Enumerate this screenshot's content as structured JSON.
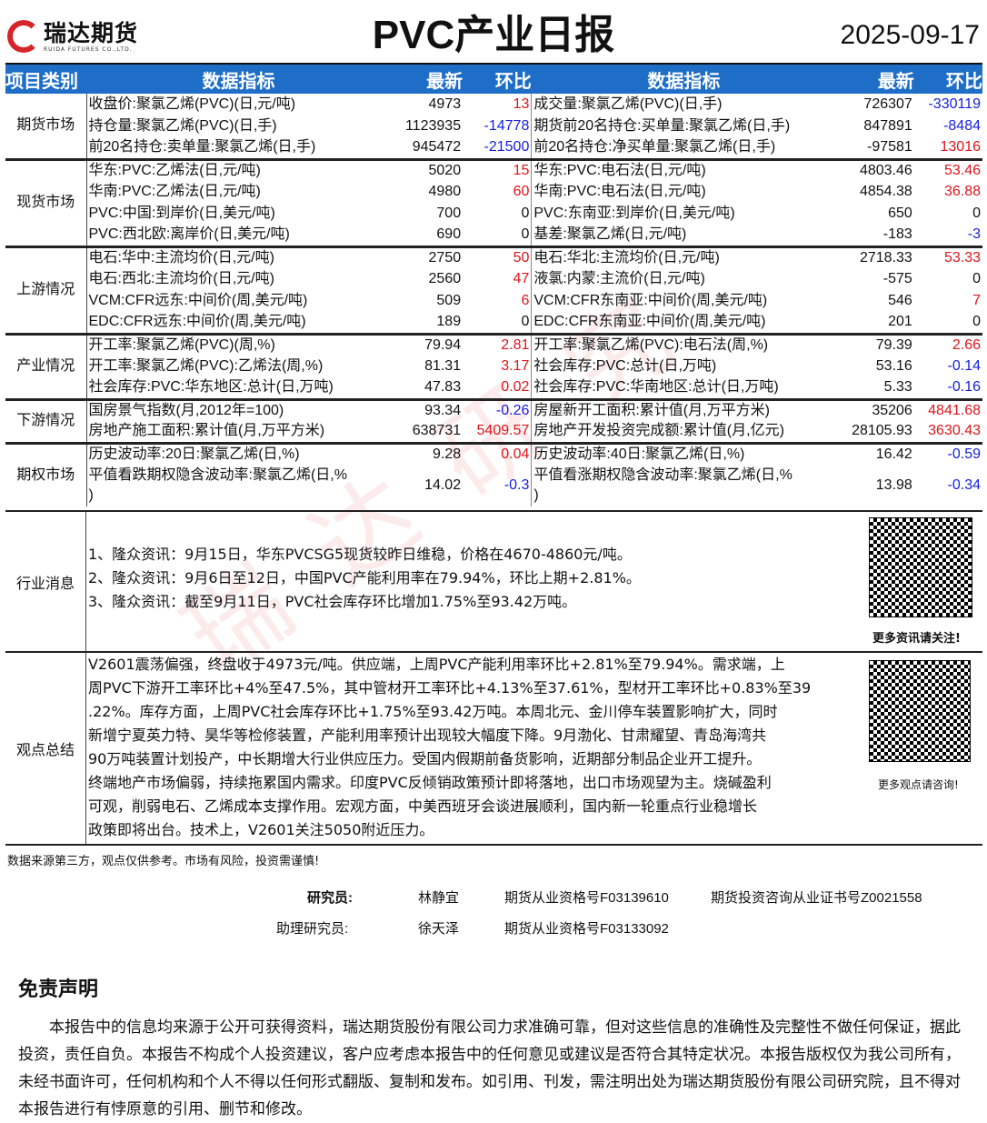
{
  "header": {
    "logo_cn": "瑞达期货",
    "logo_en": "RUIDA FUTURES CO.,LTD.",
    "title": "PVC产业日报",
    "date": "2025-09-17"
  },
  "columns": {
    "category": "项目类别",
    "indicator": "数据指标",
    "latest": "最新",
    "change": "环比"
  },
  "sections": [
    {
      "category": "期货市场",
      "rows": [
        [
          "收盘价:聚氯乙烯(PVC)(日,元/吨)",
          "4973",
          "13",
          "成交量:聚氯乙烯(PVC)(日,手)",
          "726307",
          "-330119"
        ],
        [
          "持仓量:聚氯乙烯(PVC)(日,手)",
          "1123935",
          "-14778",
          "期货前20名持仓:买单量:聚氯乙烯(日,手)",
          "847891",
          "-8484"
        ],
        [
          "前20名持仓:卖单量:聚氯乙烯(日,手)",
          "945472",
          "-21500",
          "前20名持仓:净买单量:聚氯乙烯(日,手)",
          "-97581",
          "13016"
        ]
      ]
    },
    {
      "category": "现货市场",
      "rows": [
        [
          "华东:PVC:乙烯法(日,元/吨)",
          "5020",
          "15",
          "华东:PVC:电石法(日,元/吨)",
          "4803.46",
          "53.46"
        ],
        [
          "华南:PVC:乙烯法(日,元/吨)",
          "4980",
          "60",
          "华南:PVC:电石法(日,元/吨)",
          "4854.38",
          "36.88"
        ],
        [
          "PVC:中国:到岸价(日,美元/吨)",
          "700",
          "0",
          "PVC:东南亚:到岸价(日,美元/吨)",
          "650",
          "0"
        ],
        [
          "PVC:西北欧:离岸价(日,美元/吨)",
          "690",
          "0",
          "基差:聚氯乙烯(日,元/吨)",
          "-183",
          "-3"
        ]
      ]
    },
    {
      "category": "上游情况",
      "rows": [
        [
          "电石:华中:主流均价(日,元/吨)",
          "2750",
          "50",
          "电石:华北:主流均价(日,元/吨)",
          "2718.33",
          "53.33"
        ],
        [
          "电石:西北:主流均价(日,元/吨)",
          "2560",
          "47",
          "液氯:内蒙:主流价(日,元/吨)",
          "-575",
          "0"
        ],
        [
          "VCM:CFR远东:中间价(周,美元/吨)",
          "509",
          "6",
          "VCM:CFR东南亚:中间价(周,美元/吨)",
          "546",
          "7"
        ],
        [
          "EDC:CFR远东:中间价(周,美元/吨)",
          "189",
          "0",
          "EDC:CFR东南亚:中间价(周,美元/吨)",
          "201",
          "0"
        ]
      ]
    },
    {
      "category": "产业情况",
      "rows": [
        [
          "开工率:聚氯乙烯(PVC)(周,%)",
          "79.94",
          "2.81",
          "开工率:聚氯乙烯(PVC):电石法(周,%)",
          "79.39",
          "2.66"
        ],
        [
          "开工率:聚氯乙烯(PVC):乙烯法(周,%)",
          "81.31",
          "3.17",
          "社会库存:PVC:总计(日,万吨)",
          "53.16",
          "-0.14"
        ],
        [
          "社会库存:PVC:华东地区:总计(日,万吨)",
          "47.83",
          "0.02",
          "社会库存:PVC:华南地区:总计(日,万吨)",
          "5.33",
          "-0.16"
        ]
      ]
    },
    {
      "category": "下游情况",
      "rows": [
        [
          "国房景气指数(月,2012年=100)",
          "93.34",
          "-0.26",
          "房屋新开工面积:累计值(月,万平方米)",
          "35206",
          "4841.68"
        ],
        [
          "房地产施工面积:累计值(月,万平方米)",
          "638731",
          "5409.57",
          "房地产开发投资完成额:累计值(月,亿元)",
          "28105.93",
          "3630.43"
        ]
      ]
    },
    {
      "category": "期权市场",
      "rows": [
        [
          "历史波动率:20日:聚氯乙烯(日,%)",
          "9.28",
          "0.04",
          "历史波动率:40日:聚氯乙烯(日,%)",
          "16.42",
          "-0.59"
        ],
        [
          "平值看跌期权隐含波动率:聚氯乙烯(日,%\n)",
          "14.02",
          "-0.3",
          "平值看涨期权隐含波动率:聚氯乙烯(日,%\n)",
          "13.98",
          "-0.34"
        ]
      ]
    }
  ],
  "news": {
    "label": "行业消息",
    "items": [
      "1、隆众资讯：9月15日，华东PVCSG5现货较昨日维稳，价格在4670-4860元/吨。",
      "2、隆众资讯：9月6日至12日，中国PVC产能利用率在79.94%，环比上期+2.81%。",
      "3、隆众资讯：截至9月11日，PVC社会库存环比增加1.75%至93.42万吨。"
    ],
    "qr_caption": "更多资讯请关注!"
  },
  "summary": {
    "label": "观点总结",
    "lines": [
      "V2601震荡偏强，终盘收于4973元/吨。供应端，上周PVC产能利用率环比+2.81%至79.94%。需求端，上",
      "周PVC下游开工率环比+4%至47.5%，其中管材开工率环比+4.13%至37.61%，型材开工率环比+0.83%至39",
      ".22%。库存方面，上周PVC社会库存环比+1.75%至93.42万吨。本周北元、金川停车装置影响扩大，同时",
      "新增宁夏英力特、昊华等检修装置，产能利用率预计出现较大幅度下降。9月渤化、甘肃耀望、青岛海湾共",
      "90万吨装置计划投产，中长期增大行业供应压力。受国内假期前备货影响，近期部分制品企业开工提升。",
      "终端地产市场偏弱，持续拖累国内需求。印度PVC反倾销政策预计即将落地，出口市场观望为主。烧碱盈利",
      "可观，削弱电石、乙烯成本支撑作用。宏观方面，中美西班牙会谈进展顺利，国内新一轮重点行业稳增长",
      "政策即将出台。技术上，V2601关注5050附近压力。"
    ],
    "qr_caption": "更多观点请咨询!"
  },
  "source_note": "数据来源第三方，观点仅供参考。市场有风险，投资需谨慎!",
  "staff": {
    "researcher_label": "研究员:",
    "researcher": "林静宜",
    "researcher_cert": "期货从业资格号F03139610",
    "researcher_cert2": "期货投资咨询从业证书号Z0021558",
    "assistant_label": "助理研究员:",
    "assistant": "徐天泽",
    "assistant_cert": "期货从业资格号F03133092"
  },
  "disclaimer": {
    "title": "免责声明",
    "text": "本报告中的信息均来源于公开可获得资料，瑞达期货股份有限公司力求准确可靠，但对这些信息的准确性及完整性不做任何保证，据此投资，责任自负。本报告不构成个人投资建议，客户应考虑本报告中的任何意见或建议是否符合其特定状况。本报告版权仅为我公司所有，未经书面许可，任何机构和个人不得以任何形式翻版、复制和发布。如引用、刊发，需注明出处为瑞达期货股份有限公司研究院，且不得对本报告进行有悖原意的引用、删节和修改。"
  },
  "colors": {
    "header_blue": "#1e6ec8",
    "positive": "#e0141b",
    "negative": "#1620e0",
    "brand_red": "#d7262b"
  }
}
